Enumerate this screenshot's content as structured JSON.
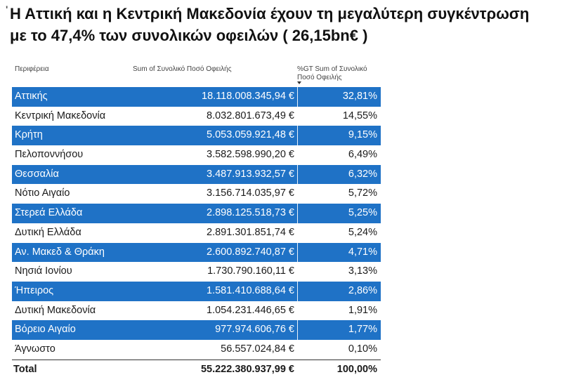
{
  "title": {
    "line1": "Η Αττική και η Κεντρική Μακεδονία  έχουν τη μεγαλύτερη συγκέντρωση",
    "line2": "με το 47,4% των συνολικών οφειλών ( 26,15bn€ )"
  },
  "table": {
    "headers": {
      "region": "Περιφέρεια",
      "sum": "Sum of Συνολικό Ποσό Οφειλής",
      "pct_line1": "%GT Sum of Συνολικό",
      "pct_line2": "Ποσό Οφειλής"
    },
    "rows": [
      {
        "region": "Αττικής",
        "sum": "18.118.008.345,94 €",
        "pct": "32,81%"
      },
      {
        "region": "Κεντρική Μακεδονία",
        "sum": "8.032.801.673,49 €",
        "pct": "14,55%"
      },
      {
        "region": "Κρήτη",
        "sum": "5.053.059.921,48 €",
        "pct": "9,15%"
      },
      {
        "region": "Πελοποννήσου",
        "sum": "3.582.598.990,20 €",
        "pct": "6,49%"
      },
      {
        "region": "Θεσσαλία",
        "sum": "3.487.913.932,57 €",
        "pct": "6,32%"
      },
      {
        "region": "Νότιο Αιγαίο",
        "sum": "3.156.714.035,97 €",
        "pct": "5,72%"
      },
      {
        "region": "Στερεά Ελλάδα",
        "sum": "2.898.125.518,73 €",
        "pct": "5,25%"
      },
      {
        "region": "Δυτική Ελλάδα",
        "sum": "2.891.301.851,74 €",
        "pct": "5,24%"
      },
      {
        "region": "Αν. Μακεδ & Θράκη",
        "sum": "2.600.892.740,87 €",
        "pct": "4,71%"
      },
      {
        "region": "Νησιά Ιονίου",
        "sum": "1.730.790.160,11 €",
        "pct": "3,13%"
      },
      {
        "region": "Ήπειρος",
        "sum": "1.581.410.688,64 €",
        "pct": "2,86%"
      },
      {
        "region": "Δυτική Μακεδονία",
        "sum": "1.054.231.446,65 €",
        "pct": "1,91%"
      },
      {
        "region": "Βόρειο Αιγαίο",
        "sum": "977.974.606,76 €",
        "pct": "1,77%"
      },
      {
        "region": "Άγνωστο",
        "sum": "56.557.024,84 €",
        "pct": "0,10%"
      }
    ],
    "total": {
      "label": "Total",
      "sum": "55.222.380.937,99 €",
      "pct": "100,00%"
    }
  },
  "colors": {
    "highlight_row": "#1f72c6",
    "highlight_text": "#ffffff"
  }
}
